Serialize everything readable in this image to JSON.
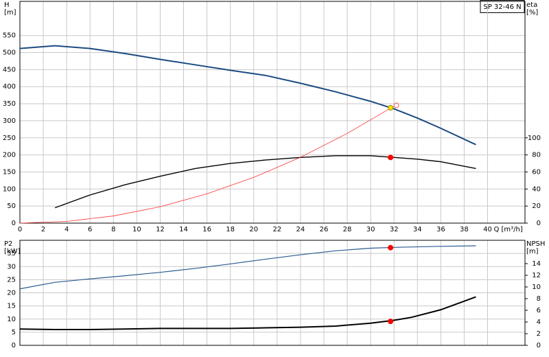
{
  "chart_data": [
    {
      "type": "line",
      "title": "SP 32-46 N",
      "xlabel": "Q [m³/h]",
      "ylabel": "H",
      "ylabel_unit": "[m]",
      "y2label": "eta",
      "y2label_unit": "[%]",
      "xlim": [
        0,
        43.2
      ],
      "xticks": [
        0,
        2,
        4,
        6,
        8,
        10,
        12,
        14,
        16,
        18,
        20,
        22,
        24,
        26,
        28,
        30,
        32,
        34,
        36,
        38,
        40
      ],
      "ylim": [
        0,
        650
      ],
      "yticks": [
        0,
        50,
        100,
        150,
        200,
        250,
        300,
        350,
        400,
        450,
        500,
        550
      ],
      "y2lim": [
        0,
        260
      ],
      "y2ticks": [
        0,
        20,
        40,
        60,
        80,
        100
      ],
      "grid": true,
      "series": [
        {
          "color": "#1a4a80",
          "width": 2,
          "x": [
            0,
            3,
            6,
            9,
            12,
            15,
            18,
            21,
            24,
            27,
            30,
            32,
            34,
            36,
            39
          ],
          "values": [
            512,
            520,
            512,
            497,
            480,
            464,
            448,
            433,
            410,
            385,
            357,
            335,
            308,
            278,
            230
          ]
        },
        {
          "color": "#000000",
          "width": 1.4,
          "axis": "y2",
          "x": [
            3,
            6,
            9,
            12,
            15,
            18,
            21,
            24,
            27,
            30,
            32,
            34,
            36,
            39
          ],
          "values": [
            18,
            33,
            45,
            55,
            64,
            70,
            74,
            77,
            79,
            79,
            77,
            75,
            72,
            64
          ]
        },
        {
          "color": "#ff3030",
          "width": 0.8,
          "x": [
            0,
            4,
            8,
            12,
            16,
            20,
            24,
            28,
            32
          ],
          "values": [
            0,
            5,
            21,
            48,
            86,
            134,
            193,
            263,
            343
          ]
        }
      ],
      "markers": [
        {
          "x": 31.7,
          "y": 77,
          "axis": "y2",
          "color": "#ff0000",
          "style": "dot"
        },
        {
          "x": 32.2,
          "y": 345,
          "color": "#ff6060",
          "style": "open"
        },
        {
          "x": 31.7,
          "y": 338,
          "color": "#ffe000",
          "style": "dot"
        }
      ]
    },
    {
      "type": "line",
      "ylabel": "P2",
      "ylabel_unit": "[kW]",
      "y2label": "NPSH",
      "y2label_unit": "[m]",
      "xlim": [
        0,
        43.2
      ],
      "xticks": [
        0,
        2,
        4,
        6,
        8,
        10,
        12,
        14,
        16,
        18,
        20,
        22,
        24,
        26,
        28,
        30,
        32,
        34,
        36,
        38,
        40
      ],
      "ylim": [
        0,
        40
      ],
      "yticks": [
        0,
        5,
        10,
        15,
        20,
        25,
        30,
        35
      ],
      "y2lim": [
        0,
        18
      ],
      "y2ticks": [
        0,
        2,
        4,
        6,
        8,
        10,
        12,
        14
      ],
      "grid": true,
      "series": [
        {
          "color": "#2a5a90",
          "width": 1.2,
          "x": [
            0,
            3,
            6,
            9,
            12,
            15,
            18,
            21,
            24,
            27,
            30,
            32,
            36,
            39
          ],
          "values": [
            21.5,
            24,
            25.3,
            26.5,
            27.8,
            29.3,
            31,
            32.8,
            34.5,
            36,
            37,
            37.3,
            37.7,
            37.9
          ]
        },
        {
          "color": "#000000",
          "width": 2,
          "axis": "y2",
          "x": [
            0,
            3,
            6,
            9,
            12,
            15,
            18,
            21,
            24,
            27,
            30,
            32,
            33.5,
            36,
            39
          ],
          "values": [
            2.8,
            2.7,
            2.7,
            2.8,
            2.9,
            2.9,
            2.9,
            3,
            3.1,
            3.3,
            3.8,
            4.3,
            4.8,
            6.1,
            8.3
          ]
        }
      ],
      "markers": [
        {
          "x": 31.7,
          "y": 37.2,
          "color": "#ff0000",
          "style": "dot"
        },
        {
          "x": 31.7,
          "y": 4.1,
          "axis": "y2",
          "color": "#ff0000",
          "style": "dot"
        }
      ]
    }
  ]
}
